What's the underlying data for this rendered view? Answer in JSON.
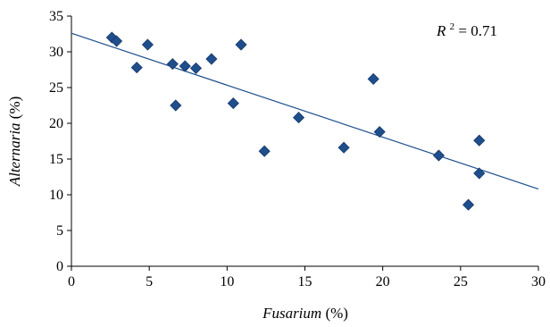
{
  "chart_data": {
    "type": "scatter",
    "xlabel": {
      "italic": "Fusarium",
      "rest": " (%)"
    },
    "ylabel": {
      "italic": "Alternaria",
      "rest": " (%)"
    },
    "xlim": [
      0,
      30
    ],
    "ylim": [
      0,
      35
    ],
    "xticks": [
      0,
      5,
      10,
      15,
      20,
      25,
      30
    ],
    "yticks": [
      0,
      5,
      10,
      15,
      20,
      25,
      30,
      35
    ],
    "grid": false,
    "series": [
      {
        "marker": "diamond",
        "color": "#1f4e8c",
        "points": [
          {
            "x": 2.6,
            "y": 32.0
          },
          {
            "x": 2.9,
            "y": 31.5
          },
          {
            "x": 4.2,
            "y": 27.8
          },
          {
            "x": 4.9,
            "y": 31.0
          },
          {
            "x": 6.5,
            "y": 28.3
          },
          {
            "x": 6.7,
            "y": 22.5
          },
          {
            "x": 7.3,
            "y": 28.0
          },
          {
            "x": 8.0,
            "y": 27.7
          },
          {
            "x": 9.0,
            "y": 29.0
          },
          {
            "x": 10.4,
            "y": 22.8
          },
          {
            "x": 10.9,
            "y": 31.0
          },
          {
            "x": 12.4,
            "y": 16.1
          },
          {
            "x": 14.6,
            "y": 20.8
          },
          {
            "x": 17.5,
            "y": 16.6
          },
          {
            "x": 19.4,
            "y": 26.2
          },
          {
            "x": 19.8,
            "y": 18.8
          },
          {
            "x": 23.6,
            "y": 15.5
          },
          {
            "x": 25.5,
            "y": 8.6
          },
          {
            "x": 26.2,
            "y": 17.6
          },
          {
            "x": 26.2,
            "y": 13.0
          }
        ]
      }
    ],
    "trendline": {
      "color": "#1f4e8c",
      "x": [
        0,
        30
      ],
      "y": [
        32.6,
        10.8
      ]
    },
    "annotation": {
      "symbol": "R",
      "superscript": "2",
      "text": " = 0.71"
    }
  }
}
